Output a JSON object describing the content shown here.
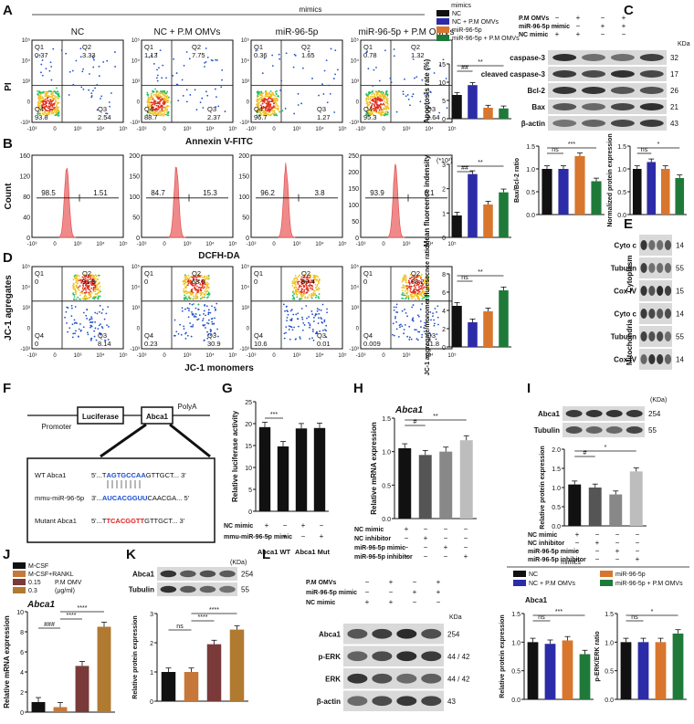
{
  "panels": {
    "A": "A",
    "B": "B",
    "C": "C",
    "D": "D",
    "E": "E",
    "F": "F",
    "G": "G",
    "H": "H",
    "I": "I",
    "J": "J",
    "K": "K",
    "L": "L"
  },
  "top_header": "mimics",
  "flow_A": {
    "titles": [
      "NC",
      "NC + P.M OMVs",
      "miR-96-5p",
      "miR-96-5p + P.M OMVs"
    ],
    "quadrants": [
      {
        "q1": "Q1",
        "q1v": "0.37",
        "q2": "Q2",
        "q2v": "3.33",
        "q3": "Q3",
        "q3v": "2.54",
        "q4": "Q4",
        "q4v": "93.8"
      },
      {
        "q1": "Q1",
        "q1v": "1.13",
        "q2": "Q2",
        "q2v": "7.75",
        "q3": "Q3",
        "q3v": "2.37",
        "q4": "Q4",
        "q4v": "88.7"
      },
      {
        "q1": "Q1",
        "q1v": "0.36",
        "q2": "Q2",
        "q2v": "1.65",
        "q3": "Q3",
        "q3v": "1.27",
        "q4": "Q4",
        "q4v": "96.7"
      },
      {
        "q1": "Q1",
        "q1v": "0.78",
        "q2": "Q2",
        "q2v": "1.32",
        "q3": "Q3",
        "q3v": "2.64",
        "q4": "Q4",
        "q4v": "95.3"
      }
    ],
    "xlabel": "Annexin V-FITC",
    "ylabel": "PI",
    "ticks": [
      "-10³",
      "0",
      "10³",
      "10⁴",
      "10⁵"
    ]
  },
  "legend_A": {
    "header": "mimics",
    "items": [
      {
        "label": "NC",
        "color": "#111111"
      },
      {
        "label": "NC + P.M OMVs",
        "color": "#2c2ca8"
      },
      {
        "label": "miR-96-5p",
        "color": "#d8762e"
      },
      {
        "label": "miR-96-5p + P.M OMVs",
        "color": "#1f7a3a"
      }
    ]
  },
  "chart_A": {
    "chart_data": {
      "type": "bar",
      "ylabel": "Apoptosis rate (%)",
      "ylim": [
        0,
        15
      ],
      "ticks": [
        "0",
        "5",
        "10",
        "15"
      ],
      "values": [
        6.5,
        9.2,
        3.0,
        2.8
      ],
      "colors": [
        "#111111",
        "#2c2ca8",
        "#d8762e",
        "#1f7a3a"
      ],
      "sig": [
        "##",
        "**"
      ]
    }
  },
  "hist_B": {
    "pct_left": [
      "98.5",
      "84.7",
      "96.2",
      "93.9"
    ],
    "pct_right": [
      "1.51",
      "15.3",
      "3.8",
      "6.1"
    ],
    "yticks": [
      [
        "0",
        "40",
        "80",
        "120",
        "160"
      ],
      [
        "0",
        "50",
        "100",
        "150",
        "200"
      ],
      [
        "0",
        "50",
        "100",
        "150",
        "200"
      ],
      [
        "0",
        "50",
        "100",
        "150",
        "200",
        "250"
      ]
    ],
    "xlabel": "DCFH-DA",
    "ylabel": "Count",
    "xticks": [
      "-10³",
      "0",
      "10³",
      "10⁴",
      "10⁵"
    ]
  },
  "chart_B": {
    "chart_data": {
      "type": "bar",
      "ylabel": "Mean fluoreence indensity",
      "unit": "(*10³)",
      "ylim": [
        0,
        3
      ],
      "ticks": [
        "0",
        "1",
        "2",
        "3"
      ],
      "values": [
        0.9,
        2.6,
        1.35,
        1.85
      ],
      "colors": [
        "#111111",
        "#2c2ca8",
        "#d8762e",
        "#1f7a3a"
      ],
      "sig": [
        "##",
        "**"
      ]
    }
  },
  "flow_D": {
    "quadrants": [
      {
        "q1": "Q1",
        "q1v": "0",
        "q2": "Q2",
        "q2v": "91.9",
        "q3": "Q3",
        "q3v": "8.14",
        "q4": "Q4",
        "q4v": "0"
      },
      {
        "q1": "Q1",
        "q1v": "0",
        "q2": "Q2",
        "q2v": "68.9",
        "q3": "Q3",
        "q3v": "30.9",
        "q4": "Q4",
        "q4v": "0.23"
      },
      {
        "q1": "Q1",
        "q1v": "0",
        "q2": "Q2",
        "q2v": "89.4",
        "q3": "Q3",
        "q3v": "0.01",
        "q4": "Q4",
        "q4v": "10.6"
      },
      {
        "q1": "Q1",
        "q1v": "0",
        "q2": "Q2",
        "q2v": "88.2",
        "q3": "Q3",
        "q3v": "11.8",
        "q4": "Q4",
        "q4v": "0.009"
      }
    ],
    "xlabel": "JC-1 monomers",
    "ylabel": "JC-1 agregates"
  },
  "chart_D": {
    "chart_data": {
      "type": "bar",
      "ylabel": "JC-1 aggregate/monomer fluresecnce ratio",
      "ylim": [
        0,
        8
      ],
      "ticks": [
        "0",
        "2",
        "4",
        "6",
        "8"
      ],
      "values": [
        4.5,
        2.7,
        3.9,
        6.2
      ],
      "colors": [
        "#111111",
        "#2c2ca8",
        "#d8762e",
        "#1f7a3a"
      ],
      "sig": [
        "ns",
        "**"
      ]
    }
  },
  "blot_C": {
    "cond_rows": [
      {
        "label": "P.M OMVs",
        "marks": [
          "−",
          "+",
          "−",
          "+"
        ]
      },
      {
        "label": "miR-96-5p mimic",
        "marks": [
          "−",
          "−",
          "+",
          "+"
        ]
      },
      {
        "label": "NC  mimic",
        "marks": [
          "+",
          "+",
          "−",
          "−"
        ]
      }
    ],
    "kda": "KDa",
    "bands": [
      {
        "label": "caspase-3",
        "kda": "32"
      },
      {
        "label": "cleaved caspase-3",
        "kda": "17"
      },
      {
        "label": "Bcl-2",
        "kda": "26"
      },
      {
        "label": "Bax",
        "kda": "21"
      },
      {
        "label": "β-actin",
        "kda": "43"
      }
    ]
  },
  "chart_C1": {
    "chart_data": {
      "type": "bar",
      "ylabel": "Bax/Bcl-2 ratio",
      "ylim": [
        0,
        1.5
      ],
      "ticks": [
        "0.0",
        "0.5",
        "1.0",
        "1.5"
      ],
      "values": [
        1.0,
        1.0,
        1.28,
        0.73
      ],
      "colors": [
        "#111111",
        "#2c2ca8",
        "#d8762e",
        "#1f7a3a"
      ],
      "sig": [
        "ns",
        "***"
      ]
    }
  },
  "chart_C2": {
    "chart_data": {
      "type": "bar",
      "ylabel": "Normalized protein expression",
      "ylim": [
        0,
        1.5
      ],
      "ticks": [
        "0.0",
        "0.5",
        "1.0",
        "1.5"
      ],
      "values": [
        1.0,
        1.15,
        1.0,
        0.8
      ],
      "colors": [
        "#111111",
        "#2c2ca8",
        "#d8762e",
        "#1f7a3a"
      ],
      "sig": [
        "ns",
        "*"
      ]
    }
  },
  "blot_E": {
    "bands": [
      {
        "label": "Cyto c",
        "kda": "14"
      },
      {
        "label": "Tubulin",
        "kda": "55"
      },
      {
        "label": "Cox IV",
        "kda": "15"
      },
      {
        "label": "Cyto c",
        "kda": "14"
      },
      {
        "label": "Tubulin",
        "kda": "55"
      },
      {
        "label": "Cox IV",
        "kda": "14"
      }
    ],
    "group1": "Cytoplasm",
    "group2": "Mitochondria"
  },
  "diagram_F": {
    "promoter": "Promoter",
    "luciferase": "Luciferase",
    "abca1": "Abca1",
    "polya": "PolyA",
    "rows": [
      {
        "label": "WT Abca1",
        "prefix": "5'...T",
        "highlight": "AGTGCCAA",
        "suffix": "GTTGCT... 3'",
        "hcolor": "#1a4fd0"
      },
      {
        "label": "mmu-miR-96-5p",
        "prefix": "3'...",
        "highlight": "AUCACGGUU",
        "suffix": "CAACGA... 5'",
        "hcolor": "#1a4fd0"
      },
      {
        "label": "Mutant Abca1",
        "prefix": "5'...T",
        "highlight": "TCACGGTT",
        "suffix": "GTTGCT... 3'",
        "hcolor": "#e02020"
      }
    ]
  },
  "chart_G": {
    "chart_data": {
      "type": "bar",
      "ylabel": "Relative luciferase activity",
      "ylim": [
        0,
        25
      ],
      "ticks": [
        "0",
        "5",
        "10",
        "15",
        "20",
        "25"
      ],
      "values": [
        19.2,
        14.8,
        18.9,
        19.0
      ],
      "colors": [
        "#111111",
        "#111111",
        "#111111",
        "#111111"
      ],
      "sig": [
        "***"
      ]
    },
    "cond_rows": [
      {
        "label": "NC mimic",
        "marks": [
          "+",
          "−",
          "+",
          "−"
        ]
      },
      {
        "label": "mmu-miR-96-5p mimic",
        "marks": [
          "−",
          "+",
          "−",
          "+"
        ]
      }
    ],
    "groups": [
      "Abca1 WT",
      "Abca1 Mut"
    ]
  },
  "chart_H": {
    "title": "Abca1",
    "chart_data": {
      "type": "bar",
      "ylabel": "Relative mRNA expression",
      "ylim": [
        0,
        1.5
      ],
      "ticks": [
        "0.0",
        "0.5",
        "1.0",
        "1.5"
      ],
      "values": [
        1.05,
        0.95,
        1.0,
        1.17
      ],
      "colors": [
        "#111111",
        "#555555",
        "#888888",
        "#bdbdbd"
      ],
      "sig": [
        "#",
        "**"
      ]
    },
    "cond_rows": [
      {
        "label": "NC mimic",
        "marks": [
          "+",
          "−",
          "−",
          "−"
        ]
      },
      {
        "label": "NC inhibitor",
        "marks": [
          "−",
          "+",
          "−",
          "−"
        ]
      },
      {
        "label": "miR-96-5p mimic",
        "marks": [
          "−",
          "−",
          "+",
          "−"
        ]
      },
      {
        "label": "miR-96-5p inhibitor",
        "marks": [
          "−",
          "−",
          "−",
          "+"
        ]
      }
    ]
  },
  "chart_I": {
    "kda": "(KDa)",
    "bands": [
      {
        "label": "Abca1",
        "kda": "254"
      },
      {
        "label": "Tubulin",
        "kda": "55"
      }
    ],
    "chart_data": {
      "type": "bar",
      "ylabel": "Relative protein expression",
      "ylim": [
        0,
        2.0
      ],
      "ticks": [
        "0.0",
        "0.5",
        "1.0",
        "1.5",
        "2.0"
      ],
      "values": [
        1.08,
        1.0,
        0.82,
        1.42
      ],
      "colors": [
        "#111111",
        "#555555",
        "#888888",
        "#bdbdbd"
      ],
      "sig": [
        "#",
        "*"
      ]
    },
    "cond_rows": [
      {
        "label": "NC mimic",
        "marks": [
          "+",
          "−",
          "−",
          "−"
        ]
      },
      {
        "label": "NC inhibitor",
        "marks": [
          "−",
          "+",
          "−",
          "−"
        ]
      },
      {
        "label": "miR-96-5p mimic",
        "marks": [
          "−",
          "−",
          "+",
          "−"
        ]
      },
      {
        "label": "miR-96-5p inhibitor",
        "marks": [
          "−",
          "−",
          "−",
          "+"
        ]
      }
    ]
  },
  "chart_J": {
    "title": "Abca1",
    "legend": [
      {
        "label": "M-CSF",
        "color": "#111111"
      },
      {
        "label": "M-CSF+RANKL",
        "color": "#c5783a"
      },
      {
        "label": "0.15",
        "color": "#7a3a3a"
      },
      {
        "label": "0.3",
        "color": "#b07a30"
      }
    ],
    "legend_extra": "P.M OMV",
    "legend_unit": "(μg/ml)",
    "chart_data": {
      "type": "bar",
      "ylabel": "Relative mRNA expression",
      "ylim": [
        0,
        10
      ],
      "ticks": [
        "0",
        "2",
        "4",
        "6",
        "8",
        "10"
      ],
      "values": [
        1.0,
        0.5,
        4.6,
        8.5
      ],
      "colors": [
        "#111111",
        "#c5783a",
        "#7a3a3a",
        "#b07a30"
      ],
      "sig": [
        "###",
        "****",
        "****"
      ]
    }
  },
  "chart_K": {
    "kda": "(KDa)",
    "bands": [
      {
        "label": "Abca1",
        "kda": "254"
      },
      {
        "label": "Tubulin",
        "kda": "55"
      }
    ],
    "chart_data": {
      "type": "bar",
      "ylabel": "Relative protein expression",
      "ylim": [
        0,
        3
      ],
      "ticks": [
        "0",
        "1",
        "2",
        "3"
      ],
      "values": [
        1.0,
        1.0,
        1.95,
        2.45
      ],
      "colors": [
        "#111111",
        "#c5783a",
        "#7a3a3a",
        "#b07a30"
      ],
      "sig": [
        "ns",
        "****",
        "****"
      ]
    }
  },
  "blot_L": {
    "cond_rows": [
      {
        "label": "P.M OMVs",
        "marks": [
          "−",
          "+",
          "−",
          "+"
        ]
      },
      {
        "label": "miR-96-5p mimic",
        "marks": [
          "−",
          "−",
          "+",
          "+"
        ]
      },
      {
        "label": "NC  mimic",
        "marks": [
          "+",
          "+",
          "−",
          "−"
        ]
      }
    ],
    "kda": "KDa",
    "bands": [
      {
        "label": "Abca1",
        "kda": "254"
      },
      {
        "label": "p-ERK",
        "kda": "44 / 42"
      },
      {
        "label": "ERK",
        "kda": "44 / 42"
      },
      {
        "label": "β-actin",
        "kda": "43"
      }
    ],
    "legend_header": "mimics",
    "legend": [
      {
        "label": "NC",
        "color": "#111111"
      },
      {
        "label": "miR-96-5p",
        "color": "#d8762e"
      },
      {
        "label": "NC + P.M OMVs",
        "color": "#2c2ca8"
      },
      {
        "label": "miR-96-5p + P.M OMVs",
        "color": "#1f7a3a"
      }
    ]
  },
  "chart_L1": {
    "title": "Abca1",
    "chart_data": {
      "type": "bar",
      "ylabel": "Relative protein expression",
      "ylim": [
        0,
        1.5
      ],
      "ticks": [
        "0.0",
        "0.5",
        "1.0",
        "1.5"
      ],
      "values": [
        1.0,
        0.97,
        1.03,
        0.79
      ],
      "colors": [
        "#111111",
        "#2c2ca8",
        "#d8762e",
        "#1f7a3a"
      ],
      "sig": [
        "ns",
        "***"
      ]
    }
  },
  "chart_L2": {
    "chart_data": {
      "type": "bar",
      "ylabel": "p-ERK/ERK ratio",
      "ylim": [
        0,
        1.5
      ],
      "ticks": [
        "0.0",
        "0.5",
        "1.0",
        "1.5"
      ],
      "values": [
        1.0,
        1.0,
        1.0,
        1.15
      ],
      "colors": [
        "#111111",
        "#2c2ca8",
        "#d8762e",
        "#1f7a3a"
      ],
      "sig": [
        "ns",
        "*"
      ]
    }
  }
}
